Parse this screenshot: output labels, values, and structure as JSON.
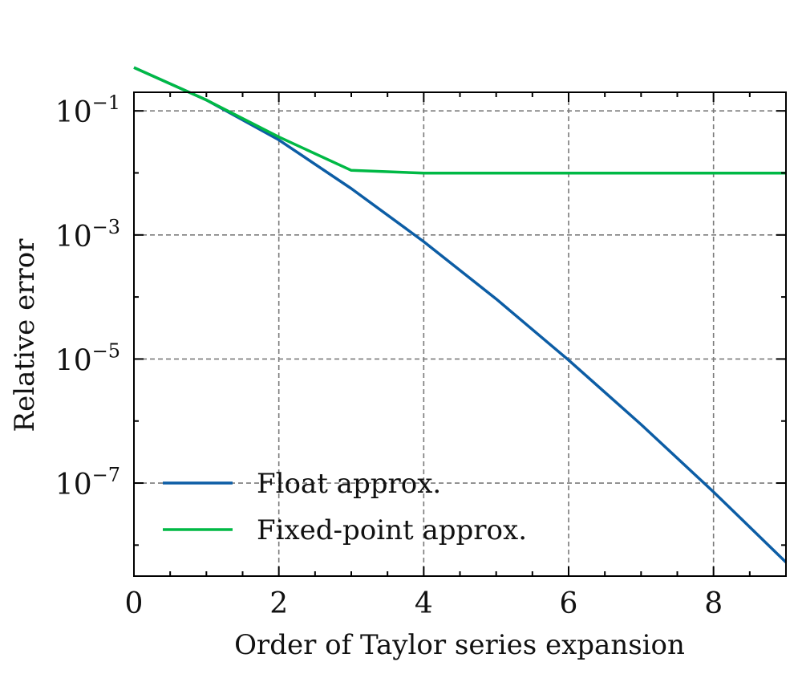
{
  "chart_data": {
    "type": "line",
    "title": "",
    "xlabel": "Order of Taylor series expansion",
    "ylabel": "Relative error",
    "xlim": [
      0,
      9
    ],
    "ylim_log10": [
      -8.5,
      -0.7
    ],
    "yscale": "log",
    "grid": true,
    "legend_position": "lower-left",
    "x_ticks": [
      {
        "value": 0,
        "label": "0"
      },
      {
        "value": 2,
        "label": "2"
      },
      {
        "value": 4,
        "label": "4"
      },
      {
        "value": 6,
        "label": "6"
      },
      {
        "value": 8,
        "label": "8"
      }
    ],
    "y_ticks": [
      {
        "exp": -1,
        "base": "10",
        "sup": "−1"
      },
      {
        "exp": -3,
        "base": "10",
        "sup": "−3"
      },
      {
        "exp": -5,
        "base": "10",
        "sup": "−5"
      },
      {
        "exp": -7,
        "base": "10",
        "sup": "−7"
      }
    ],
    "x": [
      0,
      1,
      2,
      3,
      4,
      5,
      6,
      7,
      8,
      9
    ],
    "series": [
      {
        "name": "Float approx.",
        "color": "#0c5da5",
        "values": [
          0.5,
          0.15,
          0.034,
          0.0056,
          0.00078,
          9.3e-05,
          9.6e-06,
          8.8e-07,
          7.2e-08,
          5.3e-09
        ]
      },
      {
        "name": "Fixed-point approx.",
        "color": "#00b945",
        "values": [
          0.5,
          0.15,
          0.038,
          0.011,
          0.0099,
          0.0099,
          0.0099,
          0.0099,
          0.0099,
          0.0099
        ]
      }
    ]
  }
}
